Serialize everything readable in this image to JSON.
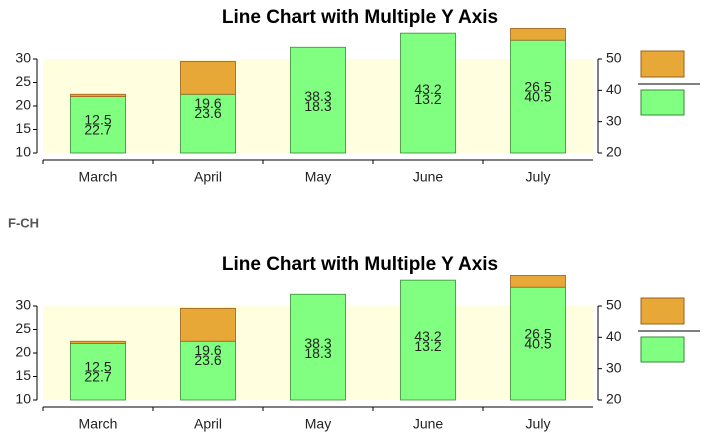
{
  "text": "F-CH",
  "chart_data": [
    {
      "type": "bar",
      "stacked": true,
      "title": "Line Chart with Multiple Y Axis",
      "categories": [
        "March",
        "April",
        "May",
        "June",
        "July"
      ],
      "series": [
        {
          "color": "#80ff80",
          "values": [
            12,
            12.5,
            22.5,
            25.5,
            24
          ]
        },
        {
          "color": "#e8a838",
          "values": [
            0.5,
            7,
            0,
            0,
            2.5
          ]
        }
      ],
      "data_labels": [
        [
          12.5,
          19.6,
          38.3,
          43.2,
          26.5
        ],
        [
          22.7,
          23.6,
          18.3,
          13.2,
          40.5
        ]
      ],
      "ylim": [
        10,
        30
      ],
      "yticks": [
        10,
        15,
        20,
        25,
        30
      ],
      "y2lim": [
        20,
        50
      ],
      "y2ticks": [
        20,
        30,
        40,
        50
      ],
      "background": "#ffffe0"
    },
    {
      "type": "bar",
      "stacked": true,
      "title": "Line Chart with Multiple Y Axis",
      "categories": [
        "March",
        "April",
        "May",
        "June",
        "July"
      ],
      "series": [
        {
          "color": "#80ff80",
          "values": [
            12,
            12.5,
            22.5,
            25.5,
            24
          ]
        },
        {
          "color": "#e8a838",
          "values": [
            0.5,
            7,
            0,
            0,
            2.5
          ]
        }
      ],
      "data_labels": [
        [
          12.5,
          19.6,
          38.3,
          43.2,
          26.5
        ],
        [
          22.7,
          23.6,
          18.3,
          13.2,
          40.5
        ]
      ],
      "ylim": [
        10,
        30
      ],
      "yticks": [
        10,
        15,
        20,
        25,
        30
      ],
      "y2lim": [
        20,
        50
      ],
      "y2ticks": [
        20,
        30,
        40,
        50
      ],
      "background": "#ffffe0"
    }
  ]
}
